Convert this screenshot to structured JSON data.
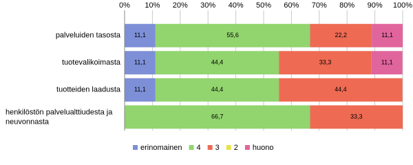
{
  "chart_data": {
    "type": "stacked-bar-horizontal",
    "categories": [
      "palveluiden tasosta",
      "tuotevalikoimasta",
      "tuotteiden laadusta",
      "henkilöstön palvelualttiudesta ja neuvonnasta"
    ],
    "series": [
      {
        "name": "erinomainen",
        "color": "#7d8fd6",
        "values": [
          11.1,
          11.1,
          11.1,
          0
        ],
        "value_labels": [
          "11,1",
          "11,1",
          "11,1",
          null
        ]
      },
      {
        "name": "4",
        "color": "#92d46e",
        "values": [
          55.6,
          44.4,
          44.4,
          66.7
        ],
        "value_labels": [
          "55,6",
          "44,4",
          "44,4",
          "66,7"
        ]
      },
      {
        "name": "3",
        "color": "#ee6a53",
        "values": [
          22.2,
          33.3,
          44.4,
          33.3
        ],
        "value_labels": [
          "22,2",
          "33,3",
          "44,4",
          "33,3"
        ]
      },
      {
        "name": "2",
        "color": "#e6e34e",
        "values": [
          0,
          0,
          0,
          0
        ],
        "value_labels": [
          null,
          null,
          null,
          null
        ]
      },
      {
        "name": "huono",
        "color": "#e0659c",
        "values": [
          11.1,
          11.1,
          0,
          0
        ],
        "value_labels": [
          "11,1",
          "11,1",
          null,
          null
        ]
      }
    ],
    "xlim": [
      0,
      100
    ],
    "xticks": [
      {
        "value": 0,
        "label": "0%"
      },
      {
        "value": 10,
        "label": "10%"
      },
      {
        "value": 20,
        "label": "20%"
      },
      {
        "value": 30,
        "label": "30%"
      },
      {
        "value": 40,
        "label": "40%"
      },
      {
        "value": 50,
        "label": "50%"
      },
      {
        "value": 60,
        "label": "60%"
      },
      {
        "value": 70,
        "label": "70%"
      },
      {
        "value": 80,
        "label": "80%"
      },
      {
        "value": 90,
        "label": "90%"
      },
      {
        "value": 100,
        "label": "100%"
      }
    ],
    "grid": true,
    "legend": "bottom"
  }
}
